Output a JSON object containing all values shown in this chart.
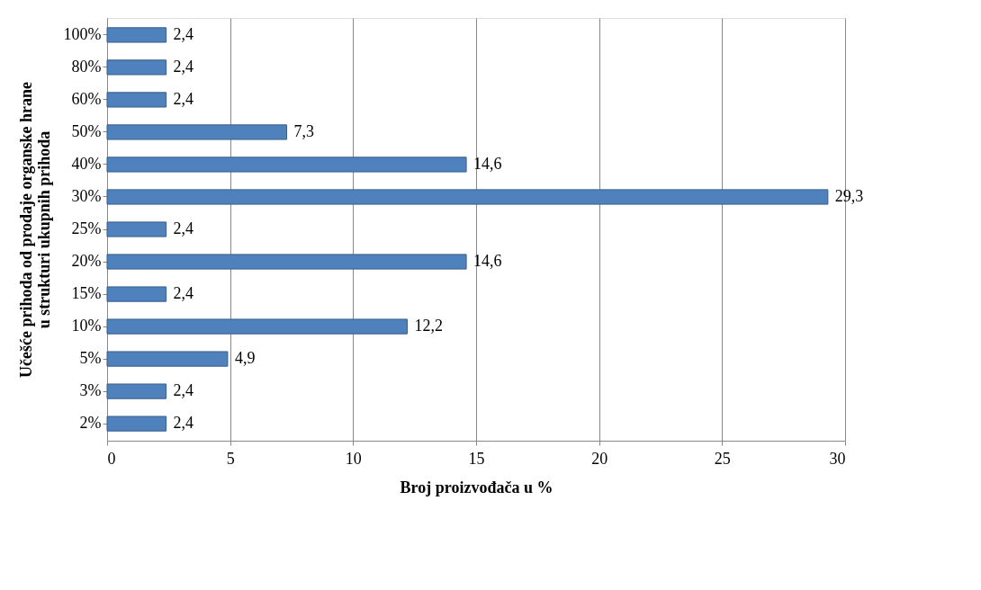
{
  "chart_data": {
    "type": "bar",
    "orientation": "horizontal",
    "xlabel": "Broj proizvođača u %",
    "ylabel": "Učešće prihoda od prodaje organske hrane\nu strukturi ukupnih prihoda",
    "categories": [
      "100%",
      "80%",
      "60%",
      "50%",
      "40%",
      "30%",
      "25%",
      "20%",
      "15%",
      "10%",
      "5%",
      "3%",
      "2%"
    ],
    "values": [
      2.4,
      2.4,
      2.4,
      7.3,
      14.6,
      29.3,
      2.4,
      14.6,
      2.4,
      12.2,
      4.9,
      2.4,
      2.4
    ],
    "value_labels": [
      "2,4",
      "2,4",
      "2,4",
      "7,3",
      "14,6",
      "29,3",
      "2,4",
      "14,6",
      "2,4",
      "12,2",
      "4,9",
      "2,4",
      "2,4"
    ],
    "color": "#4f81bd",
    "xlim": [
      0,
      30
    ],
    "xticks": [
      0,
      5,
      10,
      15,
      20,
      25,
      30
    ],
    "grid": "x"
  }
}
